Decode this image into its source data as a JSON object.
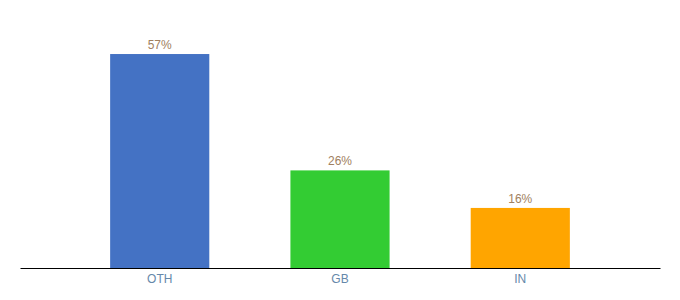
{
  "chart_data": {
    "type": "bar",
    "categories": [
      "OTH",
      "GB",
      "IN"
    ],
    "values": [
      57,
      26,
      16
    ],
    "value_labels": [
      "57%",
      "26%",
      "16%"
    ],
    "colors": [
      "#4472C4",
      "#33CC33",
      "#FFA500"
    ],
    "ylim": [
      0,
      65
    ],
    "data_labels": true,
    "tick_labels": "x"
  }
}
